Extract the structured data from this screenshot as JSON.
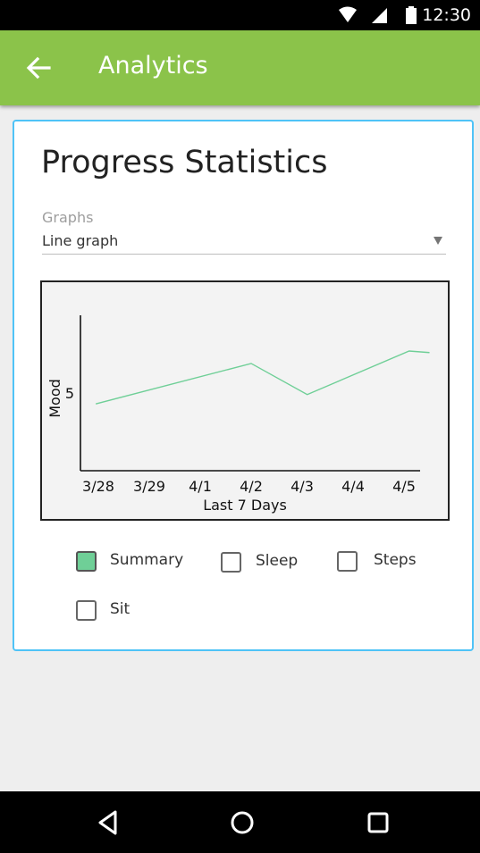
{
  "status_bar": {
    "time": "12:30",
    "icons": [
      "wifi-icon",
      "cell-signal-icon",
      "battery-icon"
    ]
  },
  "app_bar": {
    "title": "Analytics",
    "back_icon": "arrow-left-icon",
    "color": "#8bc34a"
  },
  "card": {
    "heading": "Progress Statistics",
    "border_color": "#4fc3f7",
    "graph_selector": {
      "label": "Graphs",
      "selected": "Line graph"
    }
  },
  "chart_data": {
    "type": "line",
    "title": "",
    "xlabel": "Last 7 Days",
    "ylabel": "Mood",
    "categories": [
      "3/28",
      "3/29",
      "4/1",
      "4/2",
      "4/3",
      "4/4",
      "4/5"
    ],
    "x_positions": [
      0,
      1,
      2,
      3,
      4,
      5,
      6
    ],
    "y_ticks": [
      5
    ],
    "ylim": [
      0,
      10
    ],
    "series": [
      {
        "color": "#6fcf97",
        "points": [
          [
            -0.05,
            4.3
          ],
          [
            3,
            6.9
          ],
          [
            4.1,
            4.9
          ],
          [
            6.1,
            7.7
          ],
          [
            6.5,
            7.6
          ]
        ]
      }
    ],
    "grid": false
  },
  "filters": [
    {
      "label": "Summary",
      "checked": true
    },
    {
      "label": "Sleep",
      "checked": false
    },
    {
      "label": "Steps",
      "checked": false
    },
    {
      "label": "Sit",
      "checked": false
    }
  ],
  "nav_bar": {
    "buttons": [
      "back-triangle-icon",
      "home-circle-icon",
      "recents-square-icon"
    ]
  }
}
